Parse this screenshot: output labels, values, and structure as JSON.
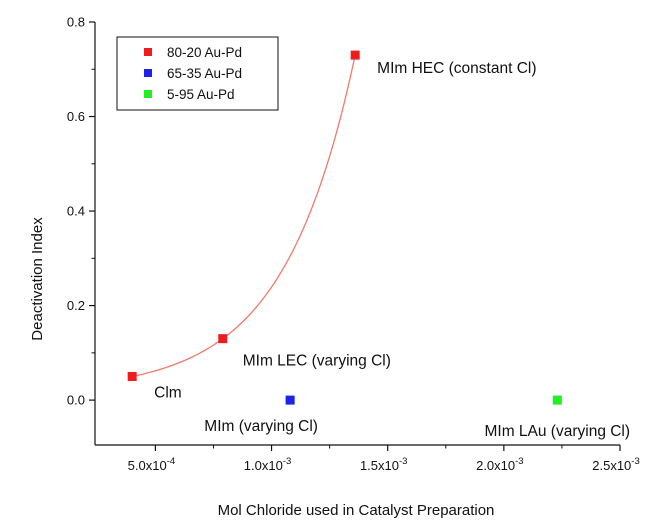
{
  "chart_data": {
    "type": "scatter",
    "title": "",
    "xlabel": "Mol Chloride used in Catalyst Preparation",
    "ylabel": "Deactivation Index",
    "xlim": [
      0.00024,
      0.0025
    ],
    "ylim": [
      -0.095,
      0.8
    ],
    "x_ticks": [
      {
        "value": 0.0005,
        "mantissa": "5.0x10",
        "exp": "-4"
      },
      {
        "value": 0.001,
        "mantissa": "1.0x10",
        "exp": "-3"
      },
      {
        "value": 0.0015,
        "mantissa": "1.5x10",
        "exp": "-3"
      },
      {
        "value": 0.002,
        "mantissa": "2.0x10",
        "exp": "-3"
      },
      {
        "value": 0.0025,
        "mantissa": "2.5x10",
        "exp": "-3"
      }
    ],
    "y_ticks": [
      {
        "value": 0.0,
        "label": "0.0"
      },
      {
        "value": 0.2,
        "label": "0.2"
      },
      {
        "value": 0.4,
        "label": "0.4"
      },
      {
        "value": 0.6,
        "label": "0.6"
      },
      {
        "value": 0.8,
        "label": "0.8"
      }
    ],
    "legend_position": "top-left",
    "grid": false,
    "series": [
      {
        "name": "80-20 Au-Pd",
        "color": "#ee1c1c",
        "points": [
          {
            "x": 0.0004,
            "y": 0.05,
            "label": "Clm"
          },
          {
            "x": 0.00079,
            "y": 0.13,
            "label": "MIm LEC (varying Cl)"
          },
          {
            "x": 0.00136,
            "y": 0.73,
            "label": "MIm HEC (constant Cl)"
          }
        ],
        "fit_line": true
      },
      {
        "name": "65-35 Au-Pd",
        "color": "#1c22e8",
        "points": [
          {
            "x": 0.00108,
            "y": 0.0,
            "label": "MIm (varying Cl)"
          }
        ]
      },
      {
        "name": "5-95 Au-Pd",
        "color": "#22ee22",
        "points": [
          {
            "x": 0.00223,
            "y": 0.0,
            "label": "MIm LAu (varying Cl)"
          }
        ]
      }
    ],
    "fit_curve_color": "#f07a6e"
  }
}
